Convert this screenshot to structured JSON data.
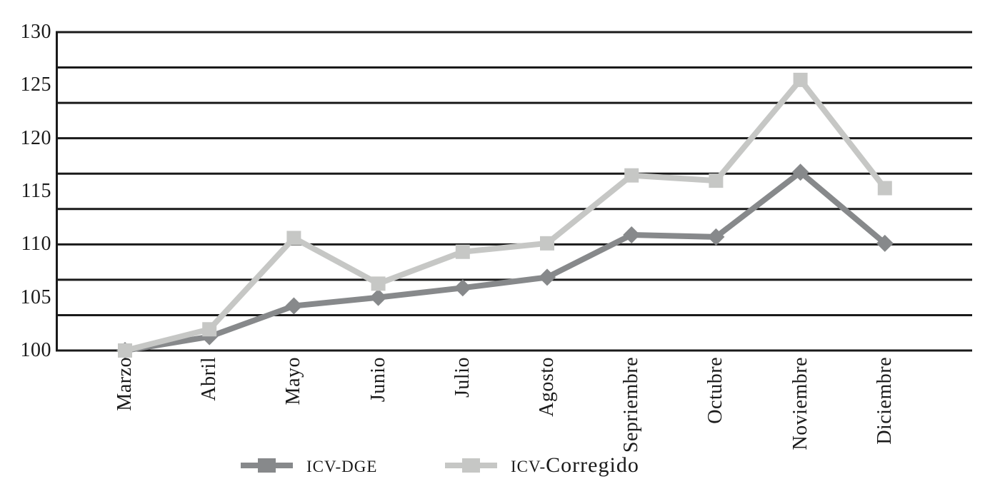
{
  "figure": {
    "background": "#FFFFFF"
  },
  "colors": {
    "axis": "#1A1A1A",
    "background": "#FFFFFF"
  },
  "chart_data": {
    "type": "line",
    "title": "",
    "xlabel": "",
    "ylabel": "",
    "categories": [
      "Marzo",
      "Abril",
      "Mayo",
      "Junio",
      "Julio",
      "Agosto",
      "Sepriembre",
      "Octubre",
      "Noviembre",
      "Diciembre"
    ],
    "series": [
      {
        "name": "ICV-DGE",
        "marker": "diamond",
        "color": "#87898B",
        "values": [
          100,
          101.3,
          104.2,
          105,
          105.9,
          106.9,
          110.9,
          110.7,
          116.8,
          110.1
        ]
      },
      {
        "name": "ICV-Corregido",
        "marker": "square",
        "color": "#C6C7C5",
        "values": [
          100,
          102,
          110.6,
          106.3,
          109.3,
          110.1,
          116.5,
          116,
          125.5,
          115.3
        ]
      }
    ],
    "ylim": [
      100,
      130
    ],
    "y_tick_labels": [
      "130",
      "125",
      "120",
      "115",
      "110",
      "105",
      "100"
    ],
    "grid": {
      "horizontal_lines": 10,
      "vertical_lines": 0
    },
    "legend_position": "bottom"
  },
  "legend": {
    "items": [
      {
        "acronym": "ICV-DGE",
        "rest": ""
      },
      {
        "acronym": "ICV-",
        "rest": "Corregido"
      }
    ]
  }
}
